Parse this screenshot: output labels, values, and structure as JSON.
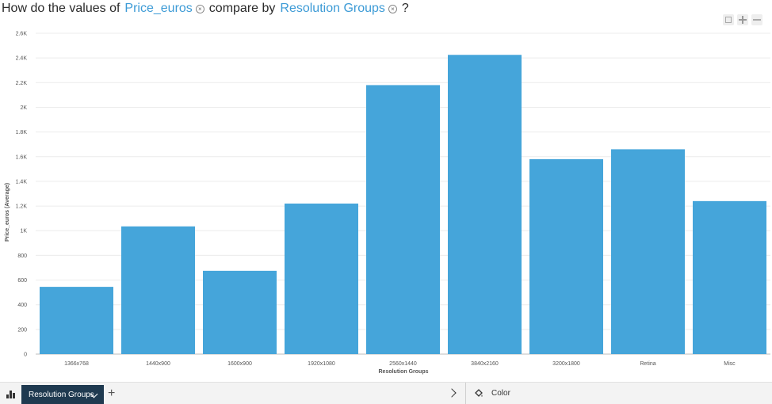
{
  "question": {
    "prefix": "How do the values of",
    "measure": "Price_euros",
    "middle": "compare by",
    "dimension": "Resolution Groups",
    "suffix": "?",
    "clear_glyph": "×"
  },
  "toolbar_icons": [
    "expand-icon",
    "zoom-in-icon",
    "zoom-out-icon"
  ],
  "bottom_bar": {
    "active_tab": "Resolution Groups",
    "add_glyph": "+",
    "color_label": "Color"
  },
  "colors": {
    "bar": "#45a5da",
    "accent": "#3d9bd6",
    "tab_bg": "#1f3a50"
  },
  "chart_data": {
    "type": "bar",
    "xlabel": "Resolution Groups",
    "ylabel": "Price_euros (Average)",
    "ylim": [
      0,
      2600
    ],
    "yticks": [
      0,
      200,
      400,
      600,
      800,
      1000,
      1200,
      1400,
      1600,
      1800,
      2000,
      2200,
      2400,
      2600
    ],
    "ytick_labels": [
      "0",
      "200",
      "400",
      "600",
      "800",
      "1K",
      "1.2K",
      "1.4K",
      "1.6K",
      "1.8K",
      "2K",
      "2.2K",
      "2.4K",
      "2.6K"
    ],
    "categories": [
      "1366x768",
      "1440x900",
      "1600x900",
      "1920x1080",
      "2560x1440",
      "3840x2160",
      "3200x1800",
      "Retina",
      "Misc"
    ],
    "values": [
      545,
      1035,
      675,
      1220,
      2180,
      2425,
      1580,
      1660,
      1240
    ],
    "grid": true
  }
}
